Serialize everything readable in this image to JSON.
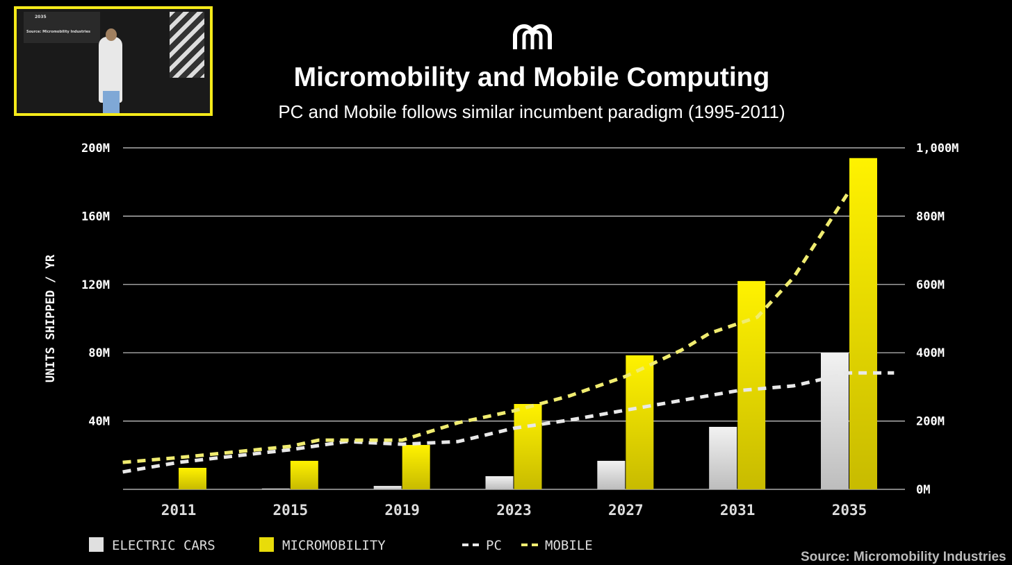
{
  "inset": {
    "slide_year": "2035",
    "slide_source": "Source: Micromobility Industries"
  },
  "chart_data": {
    "type": "bar",
    "title": "Micromobility and Mobile Computing",
    "subtitle": "PC and Mobile follows similar incumbent paradigm (1995-2011)",
    "ylabel": "UNITS SHIPPED / YR",
    "ylim": [
      0,
      200
    ],
    "yticks": [
      "40M",
      "80M",
      "120M",
      "160M",
      "200M"
    ],
    "yticks_values": [
      40,
      80,
      120,
      160,
      200
    ],
    "y2lim": [
      0,
      1000
    ],
    "y2ticks": [
      "0M",
      "200M",
      "400M",
      "600M",
      "800M",
      "1,000M"
    ],
    "y2ticks_values": [
      0,
      200,
      400,
      600,
      800,
      1000
    ],
    "categories": [
      "2011",
      "2015",
      "2019",
      "2023",
      "2027",
      "2031",
      "2035"
    ],
    "grid": true,
    "series": [
      {
        "name": "ELECTRIC CARS",
        "type": "bar",
        "axis": "left",
        "color": "#e0e0e0",
        "values": [
          0,
          0.5,
          2,
          7.7,
          16.7,
          36.6,
          80
        ]
      },
      {
        "name": "MICROMOBILITY",
        "type": "bar",
        "axis": "left",
        "color": "#e8dc0a",
        "values": [
          12.6,
          16.7,
          26,
          50,
          78.5,
          122,
          194
        ]
      },
      {
        "name": "PC",
        "type": "line",
        "style": "dashed",
        "axis": "right",
        "color": "#e8e8e8",
        "x": [
          2009,
          2011,
          2015,
          2017,
          2019,
          2021,
          2023,
          2025,
          2027,
          2031,
          2033,
          2035,
          2036.6
        ],
        "values": [
          51,
          79,
          116,
          140,
          132,
          140,
          179,
          203,
          232,
          289,
          303,
          341,
          341
        ]
      },
      {
        "name": "MOBILE",
        "type": "line",
        "style": "dashed",
        "axis": "right",
        "color": "#f0ec70",
        "x": [
          2009,
          2011,
          2015,
          2016,
          2019,
          2021,
          2023,
          2025,
          2027,
          2029,
          2030,
          2031.7,
          2033,
          2035
        ],
        "values": [
          79,
          93,
          126,
          144,
          144,
          195,
          230,
          274,
          331,
          408,
          457,
          504,
          620,
          874
        ]
      }
    ],
    "legend_position": "bottom-left",
    "source": "Source: Micromobility Industries"
  }
}
